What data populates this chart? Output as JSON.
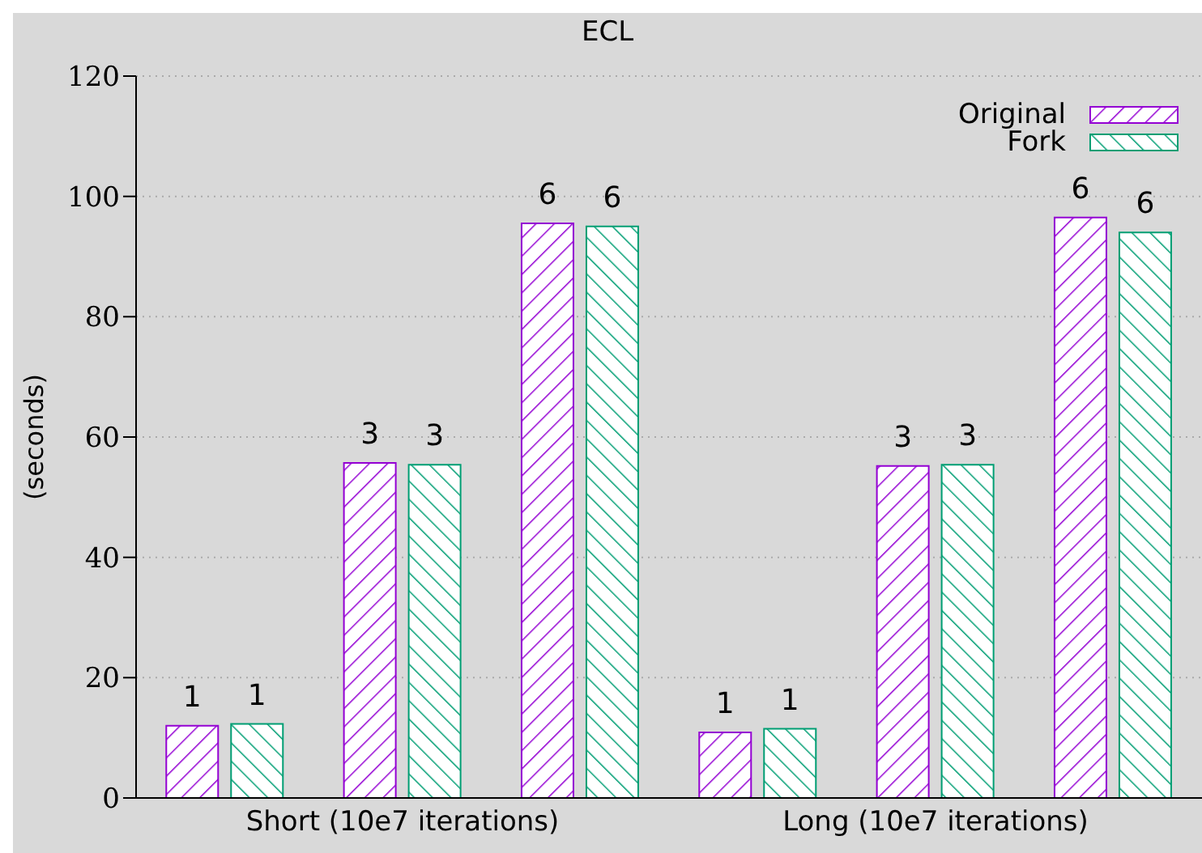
{
  "chart_data": {
    "type": "bar",
    "title": "ECL",
    "ylabel": "(seconds)",
    "categories": [
      null,
      "Short (10e7 iterations)",
      null,
      null,
      "Long (10e7 iterations)",
      null
    ],
    "series": [
      {
        "name": "Original",
        "color": "#9400d3",
        "values": [
          12.0,
          55.7,
          95.5,
          10.9,
          55.2,
          96.5
        ]
      },
      {
        "name": "Fork",
        "color": "#009e73",
        "values": [
          12.3,
          55.4,
          95.0,
          11.5,
          55.4,
          94.0
        ]
      }
    ],
    "annotations": [
      "1",
      "1",
      "3",
      "3",
      "6",
      "6",
      "1",
      "1",
      "3",
      "3",
      "6",
      "6"
    ],
    "ylim": [
      0,
      120
    ],
    "yticks": [
      0,
      20,
      40,
      60,
      80,
      100,
      120
    ],
    "grid": "y",
    "legend": "top right"
  }
}
